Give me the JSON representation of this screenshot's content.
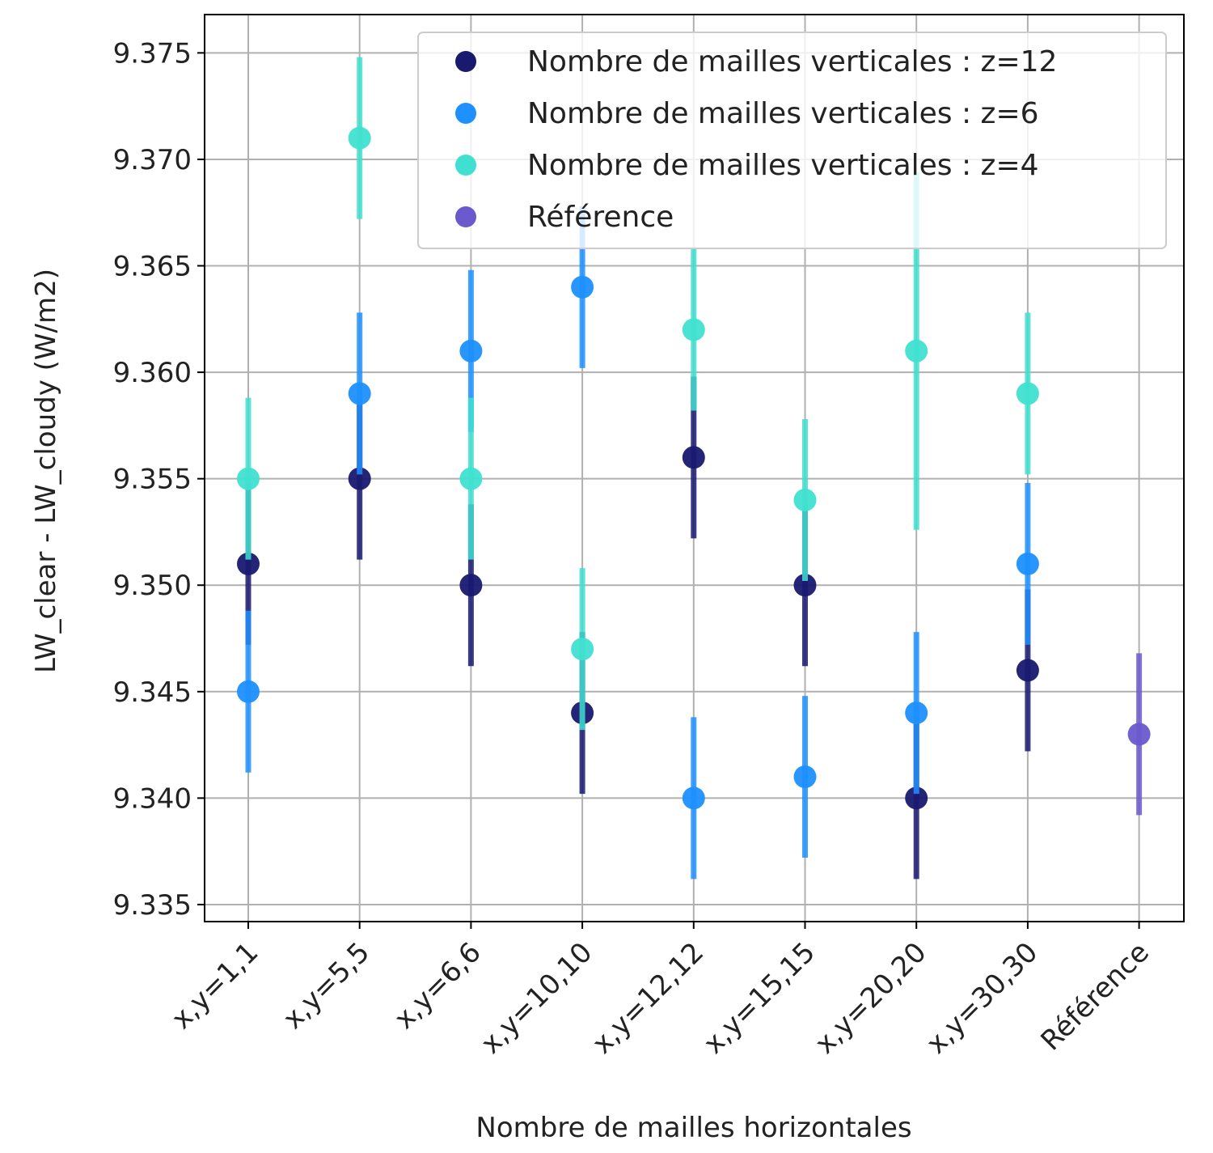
{
  "chart_data": {
    "type": "scatter",
    "xlabel": "Nombre de mailles horizontales",
    "ylabel": "LW_clear - LW_cloudy (W/m2)",
    "categories": [
      "x,y=1,1",
      "x,y=5,5",
      "x,y=6,6",
      "x,y=10,10",
      "x,y=12,12",
      "x,y=15,15",
      "x,y=20,20",
      "x,y=30,30",
      "Référence"
    ],
    "ylim": [
      9.3342,
      9.3768
    ],
    "yticks": [
      9.335,
      9.34,
      9.345,
      9.35,
      9.355,
      9.36,
      9.365,
      9.37,
      9.375
    ],
    "ytick_labels": [
      "9.335",
      "9.340",
      "9.345",
      "9.350",
      "9.355",
      "9.360",
      "9.365",
      "9.370",
      "9.375"
    ],
    "grid": true,
    "legend_position": "top-right",
    "series": [
      {
        "name": "Nombre de mailles verticales : z=12",
        "color": "#191970",
        "categories": [
          "x,y=1,1",
          "x,y=5,5",
          "x,y=6,6",
          "x,y=10,10",
          "x,y=12,12",
          "x,y=15,15",
          "x,y=20,20",
          "x,y=30,30"
        ],
        "values": [
          9.351,
          9.355,
          9.35,
          9.344,
          9.356,
          9.35,
          9.34,
          9.346
        ],
        "errors": [
          0.0038,
          0.0038,
          0.0038,
          0.0038,
          0.0038,
          0.0038,
          0.0038,
          0.0038
        ]
      },
      {
        "name": "Nombre de mailles verticales : z=6",
        "color": "#1e90ff",
        "categories": [
          "x,y=1,1",
          "x,y=5,5",
          "x,y=6,6",
          "x,y=10,10",
          "x,y=12,12",
          "x,y=15,15",
          "x,y=20,20",
          "x,y=30,30"
        ],
        "values": [
          9.345,
          9.359,
          9.361,
          9.364,
          9.34,
          9.341,
          9.344,
          9.351
        ],
        "errors": [
          0.0038,
          0.0038,
          0.0038,
          0.0038,
          0.0038,
          0.0038,
          0.0038,
          0.0038
        ]
      },
      {
        "name": "Nombre de mailles verticales : z=4",
        "color": "#40e0d0",
        "categories": [
          "x,y=1,1",
          "x,y=5,5",
          "x,y=6,6",
          "x,y=10,10",
          "x,y=12,12",
          "x,y=15,15",
          "x,y=20,20",
          "x,y=30,30"
        ],
        "values": [
          9.355,
          9.371,
          9.355,
          9.347,
          9.362,
          9.354,
          9.361,
          9.359
        ],
        "errors": [
          0.0038,
          0.0038,
          0.0038,
          0.0038,
          0.0038,
          0.0038,
          0.0084,
          0.0038
        ]
      },
      {
        "name": "Référence",
        "color": "#6a5acd",
        "categories": [
          "Référence"
        ],
        "values": [
          9.343
        ],
        "errors": [
          0.0038
        ]
      }
    ]
  }
}
